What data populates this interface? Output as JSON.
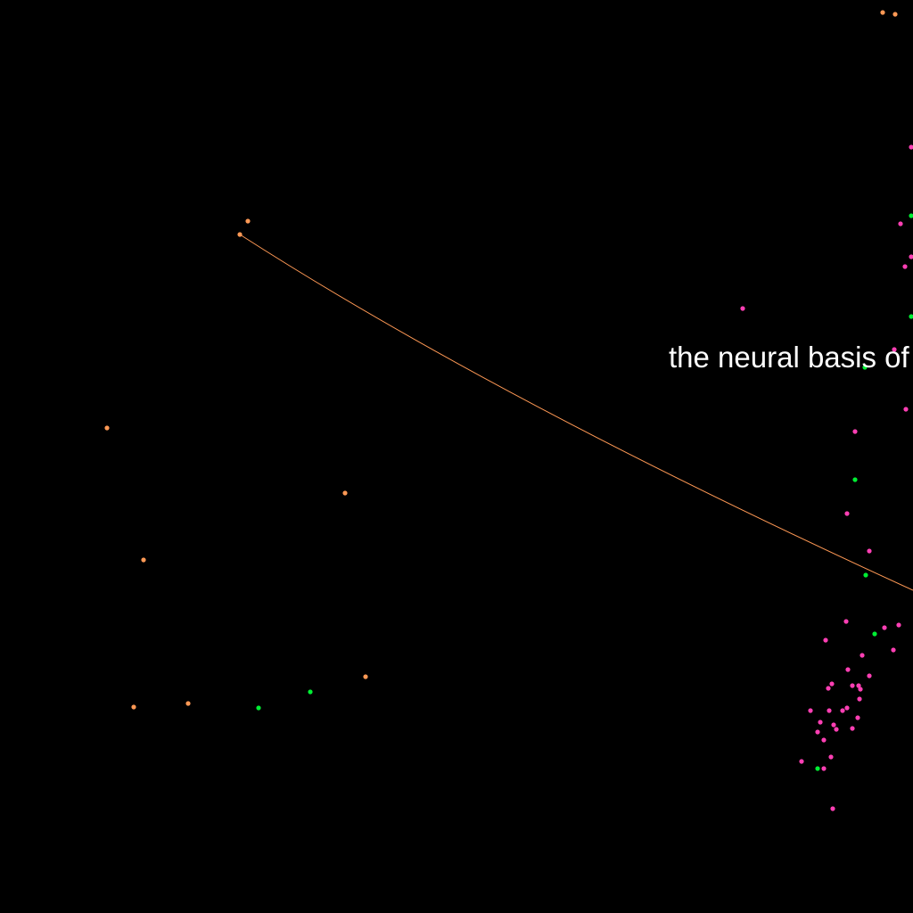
{
  "visualization": {
    "type": "point-embedding-map",
    "background": "#000000",
    "colors": {
      "orange": "#ff9955",
      "pink": "#ff3fb4",
      "green": "#00ee33"
    },
    "label": "the neural basis of",
    "clipped": true
  }
}
